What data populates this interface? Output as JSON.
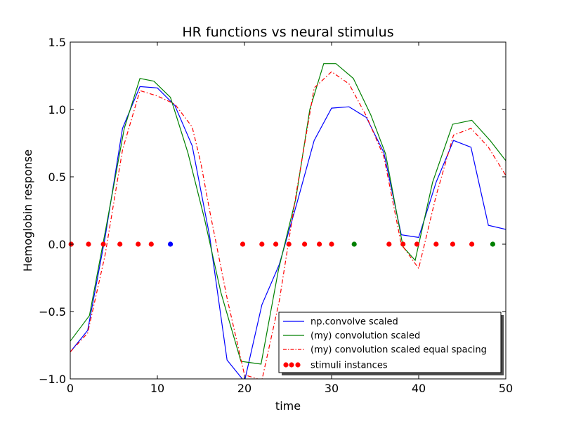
{
  "chart_data": {
    "type": "line",
    "title": "HR functions vs neural stimulus",
    "xlabel": "time",
    "ylabel": "Hemoglobin response",
    "xlim": [
      0,
      50
    ],
    "ylim": [
      -1.0,
      1.5
    ],
    "xticks": [
      0,
      10,
      20,
      30,
      40,
      50
    ],
    "xtick_labels": [
      "0",
      "10",
      "20",
      "30",
      "40",
      "50"
    ],
    "yticks": [
      -1.0,
      -0.5,
      0.0,
      0.5,
      1.0,
      1.5
    ],
    "ytick_labels": [
      "−1.0",
      "−0.5",
      "0.0",
      "0.5",
      "1.0",
      "1.5"
    ],
    "grid": false,
    "legend_position": "lower-right",
    "series": [
      {
        "name": "np.convolve scaled",
        "color": "#0000ff",
        "style": "solid",
        "points": [
          [
            0,
            -0.8
          ],
          [
            2,
            -0.64
          ],
          [
            4,
            0.05
          ],
          [
            6,
            0.86
          ],
          [
            8,
            1.17
          ],
          [
            10,
            1.16
          ],
          [
            12,
            1.03
          ],
          [
            14,
            0.73
          ],
          [
            16,
            0.06
          ],
          [
            18,
            -0.86
          ],
          [
            20,
            -1.02
          ],
          [
            22,
            -0.45
          ],
          [
            24,
            -0.15
          ],
          [
            26,
            0.3
          ],
          [
            28,
            0.77
          ],
          [
            30,
            1.01
          ],
          [
            32,
            1.02
          ],
          [
            34,
            0.94
          ],
          [
            36,
            0.68
          ],
          [
            38,
            0.07
          ],
          [
            40,
            0.05
          ],
          [
            42,
            0.46
          ],
          [
            44,
            0.77
          ],
          [
            46,
            0.72
          ],
          [
            48,
            0.14
          ],
          [
            50,
            0.11
          ]
        ]
      },
      {
        "name": "(my) convolution scaled",
        "color": "#008000",
        "style": "solid",
        "points": [
          [
            0,
            -0.72
          ],
          [
            2.2,
            -0.53
          ],
          [
            4.1,
            0.12
          ],
          [
            6.2,
            0.86
          ],
          [
            8.0,
            1.23
          ],
          [
            9.6,
            1.21
          ],
          [
            11.5,
            1.09
          ],
          [
            13.5,
            0.68
          ],
          [
            15.4,
            0.19
          ],
          [
            17.3,
            -0.36
          ],
          [
            19.6,
            -0.87
          ],
          [
            21.9,
            -0.89
          ],
          [
            23.9,
            -0.19
          ],
          [
            25.9,
            0.34
          ],
          [
            27.5,
            1.0
          ],
          [
            29.1,
            1.34
          ],
          [
            30.5,
            1.34
          ],
          [
            32.5,
            1.23
          ],
          [
            34.5,
            0.96
          ],
          [
            36.2,
            0.67
          ],
          [
            38.2,
            -0.02
          ],
          [
            39.6,
            -0.12
          ],
          [
            41.6,
            0.46
          ],
          [
            43.9,
            0.89
          ],
          [
            46.1,
            0.92
          ],
          [
            48.2,
            0.77
          ],
          [
            50.0,
            0.62
          ]
        ]
      },
      {
        "name": "(my) convolution scaled equal spacing",
        "color": "#ff0000",
        "style": "dashdot",
        "points": [
          [
            0,
            -0.8
          ],
          [
            2,
            -0.66
          ],
          [
            4,
            -0.08
          ],
          [
            6,
            0.7
          ],
          [
            8,
            1.14
          ],
          [
            10,
            1.1
          ],
          [
            12,
            1.04
          ],
          [
            14,
            0.87
          ],
          [
            15,
            0.6
          ],
          [
            16,
            0.25
          ],
          [
            18,
            -0.4
          ],
          [
            20,
            -0.97
          ],
          [
            22,
            -1.01
          ],
          [
            24,
            -0.42
          ],
          [
            26,
            0.4
          ],
          [
            28,
            1.16
          ],
          [
            30,
            1.28
          ],
          [
            32,
            1.19
          ],
          [
            34,
            0.95
          ],
          [
            36,
            0.65
          ],
          [
            38,
            0.0
          ],
          [
            40,
            -0.18
          ],
          [
            42,
            0.36
          ],
          [
            44,
            0.81
          ],
          [
            46,
            0.86
          ],
          [
            48,
            0.72
          ],
          [
            50,
            0.51
          ]
        ]
      }
    ],
    "stimuli": {
      "name": "stimuli instances",
      "y": 0.0,
      "points": [
        {
          "x": 0.1,
          "color": "#ff0000"
        },
        {
          "x": 2.1,
          "color": "#ff0000"
        },
        {
          "x": 3.8,
          "color": "#ff0000"
        },
        {
          "x": 5.7,
          "color": "#ff0000"
        },
        {
          "x": 7.8,
          "color": "#ff0000"
        },
        {
          "x": 9.3,
          "color": "#ff0000"
        },
        {
          "x": 11.5,
          "color": "#0000ff"
        },
        {
          "x": 19.8,
          "color": "#ff0000"
        },
        {
          "x": 22.0,
          "color": "#ff0000"
        },
        {
          "x": 23.6,
          "color": "#ff0000"
        },
        {
          "x": 25.1,
          "color": "#ff0000"
        },
        {
          "x": 26.9,
          "color": "#ff0000"
        },
        {
          "x": 28.6,
          "color": "#ff0000"
        },
        {
          "x": 30.0,
          "color": "#ff0000"
        },
        {
          "x": 32.6,
          "color": "#008000"
        },
        {
          "x": 36.6,
          "color": "#ff0000"
        },
        {
          "x": 38.2,
          "color": "#ff0000"
        },
        {
          "x": 39.8,
          "color": "#ff0000"
        },
        {
          "x": 42.0,
          "color": "#ff0000"
        },
        {
          "x": 43.9,
          "color": "#ff0000"
        },
        {
          "x": 46.1,
          "color": "#ff0000"
        },
        {
          "x": 48.5,
          "color": "#008000"
        }
      ]
    },
    "legend_marker_color": "#ff0000"
  }
}
